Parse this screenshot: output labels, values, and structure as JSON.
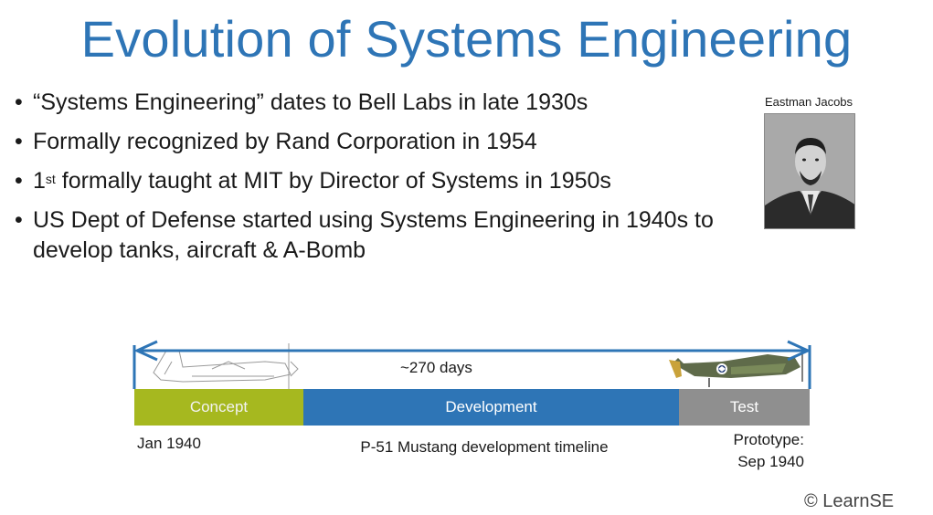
{
  "slide": {
    "title": "Evolution of Systems Engineering",
    "bullets": [
      {
        "pre": "“Systems Engineering” dates to Bell Labs in late 1930s"
      },
      {
        "pre": "Formally recognized by Rand Corporation in 1954"
      },
      {
        "pre": "1",
        "sup": "st",
        "post": " formally taught at MIT by Director of Systems in 1950s"
      },
      {
        "pre": "US Dept of Defense started using Systems Engineering in 1940s to develop tanks, aircraft & A-Bomb"
      }
    ],
    "bullet_symbol": "•",
    "portrait_caption": "Eastman Jacobs"
  },
  "timeline": {
    "span_label": "~270 days",
    "phases": [
      "Concept",
      "Development",
      "Test"
    ],
    "start_label": "Jan 1940",
    "caption": "P-51 Mustang development timeline",
    "end_label_line1": "Prototype:",
    "end_label_line2": "Sep 1940",
    "colors": {
      "concept": "#a6b81f",
      "development": "#2e75b6",
      "test": "#8f8f8f",
      "arrow": "#2e75b6"
    }
  },
  "footer": {
    "copyright": "© LearnSE"
  }
}
